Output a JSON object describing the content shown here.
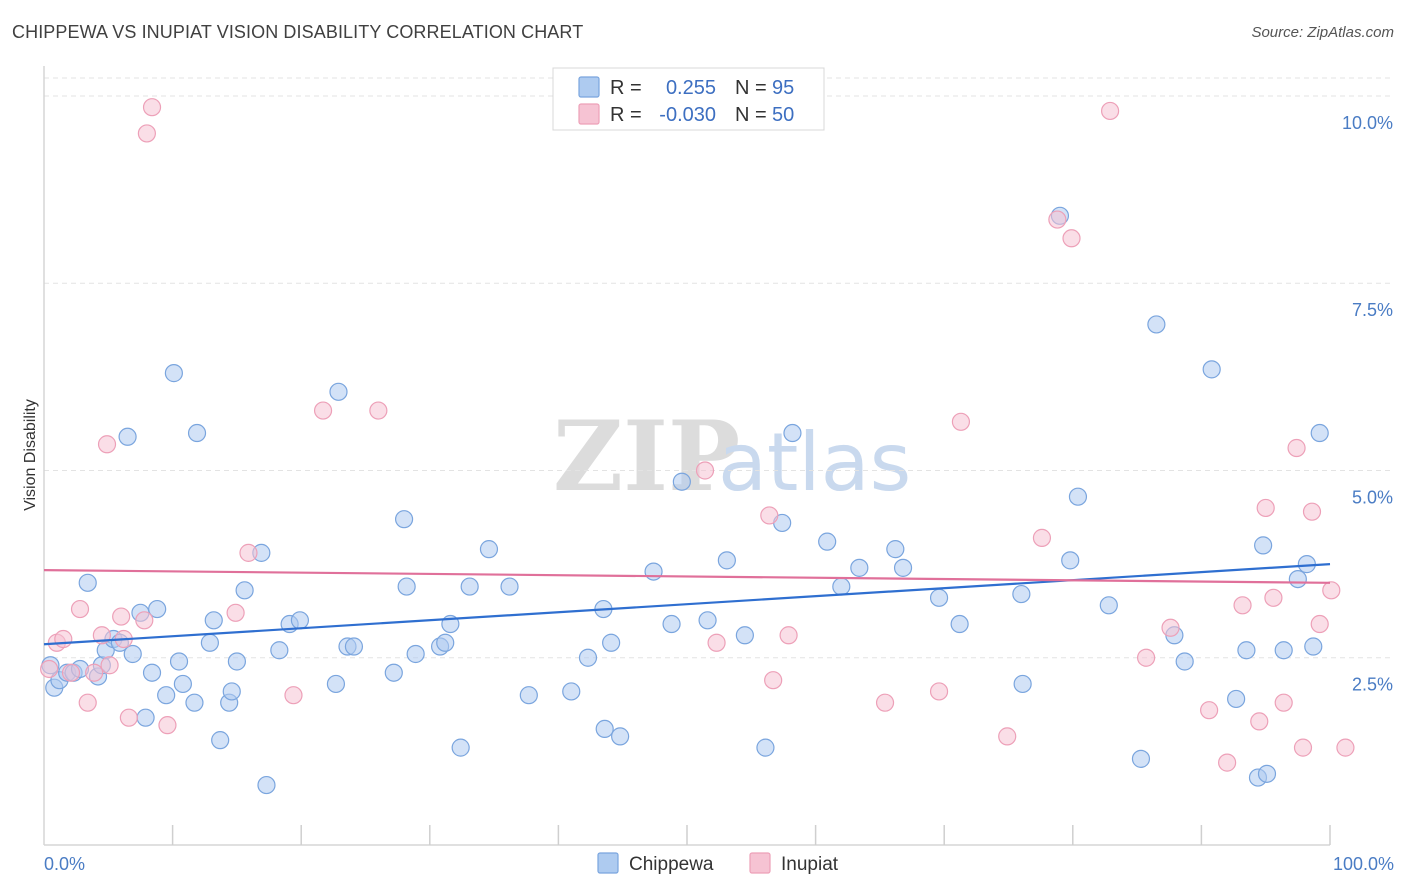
{
  "header": {
    "title": "CHIPPEWA VS INUPIAT VISION DISABILITY CORRELATION CHART",
    "source": "Source: ZipAtlas.com"
  },
  "colors": {
    "chippewa_fill": "#aecbf0",
    "chippewa_stroke": "#7aa5de",
    "chippewa_line": "#2f6fd0",
    "inupiat_fill": "#f6c3d3",
    "inupiat_stroke": "#eda0b8",
    "inupiat_line": "#e0709a",
    "tick_text": "#4a7cc4"
  },
  "watermark": {
    "left": "ZIP",
    "right": "atlas"
  },
  "legend": {
    "rows": [
      {
        "r_label": "R =",
        "r_value": "0.255",
        "n_label": "N =",
        "n_value": "95"
      },
      {
        "r_label": "R =",
        "r_value": "-0.030",
        "n_label": "N =",
        "n_value": "50"
      }
    ]
  },
  "bottom_legend": [
    "Chippewa",
    "Inupiat"
  ],
  "chart_data": {
    "type": "scatter",
    "title": "CHIPPEWA VS INUPIAT VISION DISABILITY CORRELATION CHART",
    "xlabel": "",
    "ylabel": "Vision Disability",
    "xlim": [
      0,
      100
    ],
    "ylim": [
      0,
      10.4
    ],
    "x_tick_labels": [
      "0.0%",
      "100.0%"
    ],
    "y_ticks": [
      2.5,
      5.0,
      7.5,
      10.0
    ],
    "y_tick_labels": [
      "2.5%",
      "5.0%",
      "7.5%",
      "10.0%"
    ],
    "grid": "horizontal dashed",
    "legend_position": "top-center",
    "series": [
      {
        "name": "Chippewa",
        "r": 0.255,
        "n": 95,
        "trend": {
          "x": [
            0,
            100
          ],
          "y": [
            2.68,
            3.75
          ]
        },
        "points": [
          [
            0.5,
            2.4
          ],
          [
            0.8,
            2.1
          ],
          [
            1.2,
            2.2
          ],
          [
            1.8,
            2.3
          ],
          [
            2.3,
            2.3
          ],
          [
            2.8,
            2.35
          ],
          [
            3.4,
            3.5
          ],
          [
            4.2,
            2.25
          ],
          [
            4.5,
            2.4
          ],
          [
            4.8,
            2.6
          ],
          [
            5.4,
            2.75
          ],
          [
            5.9,
            2.7
          ],
          [
            6.5,
            5.45
          ],
          [
            6.9,
            2.55
          ],
          [
            7.5,
            3.1
          ],
          [
            7.9,
            1.7
          ],
          [
            8.4,
            2.3
          ],
          [
            8.8,
            3.15
          ],
          [
            9.5,
            2.0
          ],
          [
            10.1,
            6.3
          ],
          [
            10.5,
            2.45
          ],
          [
            10.8,
            2.15
          ],
          [
            11.7,
            1.9
          ],
          [
            11.9,
            5.5
          ],
          [
            12.9,
            2.7
          ],
          [
            13.2,
            3.0
          ],
          [
            13.7,
            1.4
          ],
          [
            14.4,
            1.9
          ],
          [
            14.6,
            2.05
          ],
          [
            15.0,
            2.45
          ],
          [
            15.6,
            3.4
          ],
          [
            16.9,
            3.9
          ],
          [
            17.3,
            0.8
          ],
          [
            18.3,
            2.6
          ],
          [
            19.1,
            2.95
          ],
          [
            19.9,
            3.0
          ],
          [
            22.7,
            2.15
          ],
          [
            22.9,
            6.05
          ],
          [
            23.6,
            2.65
          ],
          [
            24.1,
            2.65
          ],
          [
            27.2,
            2.3
          ],
          [
            28.0,
            4.35
          ],
          [
            28.2,
            3.45
          ],
          [
            28.9,
            2.55
          ],
          [
            30.8,
            2.65
          ],
          [
            31.2,
            2.7
          ],
          [
            31.6,
            2.95
          ],
          [
            32.4,
            1.3
          ],
          [
            33.1,
            3.45
          ],
          [
            34.6,
            3.95
          ],
          [
            36.2,
            3.45
          ],
          [
            37.7,
            2.0
          ],
          [
            41.0,
            2.05
          ],
          [
            42.3,
            2.5
          ],
          [
            43.5,
            3.15
          ],
          [
            43.6,
            1.55
          ],
          [
            44.1,
            2.7
          ],
          [
            44.8,
            1.45
          ],
          [
            47.4,
            3.65
          ],
          [
            48.8,
            2.95
          ],
          [
            49.6,
            4.85
          ],
          [
            51.6,
            3.0
          ],
          [
            53.1,
            3.8
          ],
          [
            54.5,
            2.8
          ],
          [
            56.1,
            1.3
          ],
          [
            57.4,
            4.3
          ],
          [
            58.2,
            5.5
          ],
          [
            60.9,
            4.05
          ],
          [
            62.0,
            3.45
          ],
          [
            63.4,
            3.7
          ],
          [
            66.2,
            3.95
          ],
          [
            66.8,
            3.7
          ],
          [
            69.6,
            3.3
          ],
          [
            71.2,
            2.95
          ],
          [
            76.0,
            3.35
          ],
          [
            76.1,
            2.15
          ],
          [
            79.0,
            8.4
          ],
          [
            79.8,
            3.8
          ],
          [
            80.4,
            4.65
          ],
          [
            82.8,
            3.2
          ],
          [
            85.3,
            1.15
          ],
          [
            86.5,
            6.95
          ],
          [
            87.9,
            2.8
          ],
          [
            88.7,
            2.45
          ],
          [
            90.8,
            6.35
          ],
          [
            92.7,
            1.95
          ],
          [
            93.5,
            2.6
          ],
          [
            94.4,
            0.9
          ],
          [
            94.8,
            4.0
          ],
          [
            95.1,
            0.95
          ],
          [
            96.4,
            2.6
          ],
          [
            97.5,
            3.55
          ],
          [
            98.2,
            3.75
          ],
          [
            98.7,
            2.65
          ],
          [
            99.2,
            5.5
          ]
        ]
      },
      {
        "name": "Inupiat",
        "r": -0.03,
        "n": 50,
        "trend": {
          "x": [
            0,
            100
          ],
          "y": [
            3.67,
            3.5
          ]
        },
        "points": [
          [
            0.4,
            2.35
          ],
          [
            1.0,
            2.7
          ],
          [
            1.5,
            2.75
          ],
          [
            2.1,
            2.3
          ],
          [
            2.8,
            3.15
          ],
          [
            3.4,
            1.9
          ],
          [
            3.9,
            2.3
          ],
          [
            4.5,
            2.8
          ],
          [
            4.9,
            5.35
          ],
          [
            5.1,
            2.4
          ],
          [
            6.0,
            3.05
          ],
          [
            6.2,
            2.75
          ],
          [
            6.6,
            1.7
          ],
          [
            7.8,
            3.0
          ],
          [
            8.0,
            9.5
          ],
          [
            8.4,
            9.85
          ],
          [
            9.6,
            1.6
          ],
          [
            14.9,
            3.1
          ],
          [
            15.9,
            3.9
          ],
          [
            19.4,
            2.0
          ],
          [
            21.7,
            5.8
          ],
          [
            26.0,
            5.8
          ],
          [
            52.3,
            2.7
          ],
          [
            56.4,
            4.4
          ],
          [
            56.7,
            2.2
          ],
          [
            57.9,
            2.8
          ],
          [
            65.4,
            1.9
          ],
          [
            69.6,
            2.05
          ],
          [
            71.3,
            5.65
          ],
          [
            74.9,
            1.45
          ],
          [
            77.6,
            4.1
          ],
          [
            78.8,
            8.35
          ],
          [
            82.9,
            9.8
          ],
          [
            85.7,
            2.5
          ],
          [
            87.6,
            2.9
          ],
          [
            90.6,
            1.8
          ],
          [
            92.0,
            1.1
          ],
          [
            93.2,
            3.2
          ],
          [
            94.5,
            1.65
          ],
          [
            95.0,
            4.5
          ],
          [
            95.6,
            3.3
          ],
          [
            96.4,
            1.9
          ],
          [
            97.4,
            5.3
          ],
          [
            97.9,
            1.3
          ],
          [
            98.6,
            4.45
          ],
          [
            99.2,
            2.95
          ],
          [
            100.1,
            3.4
          ],
          [
            101.2,
            1.3
          ],
          [
            51.4,
            5.0
          ],
          [
            79.9,
            8.1
          ]
        ]
      }
    ]
  }
}
